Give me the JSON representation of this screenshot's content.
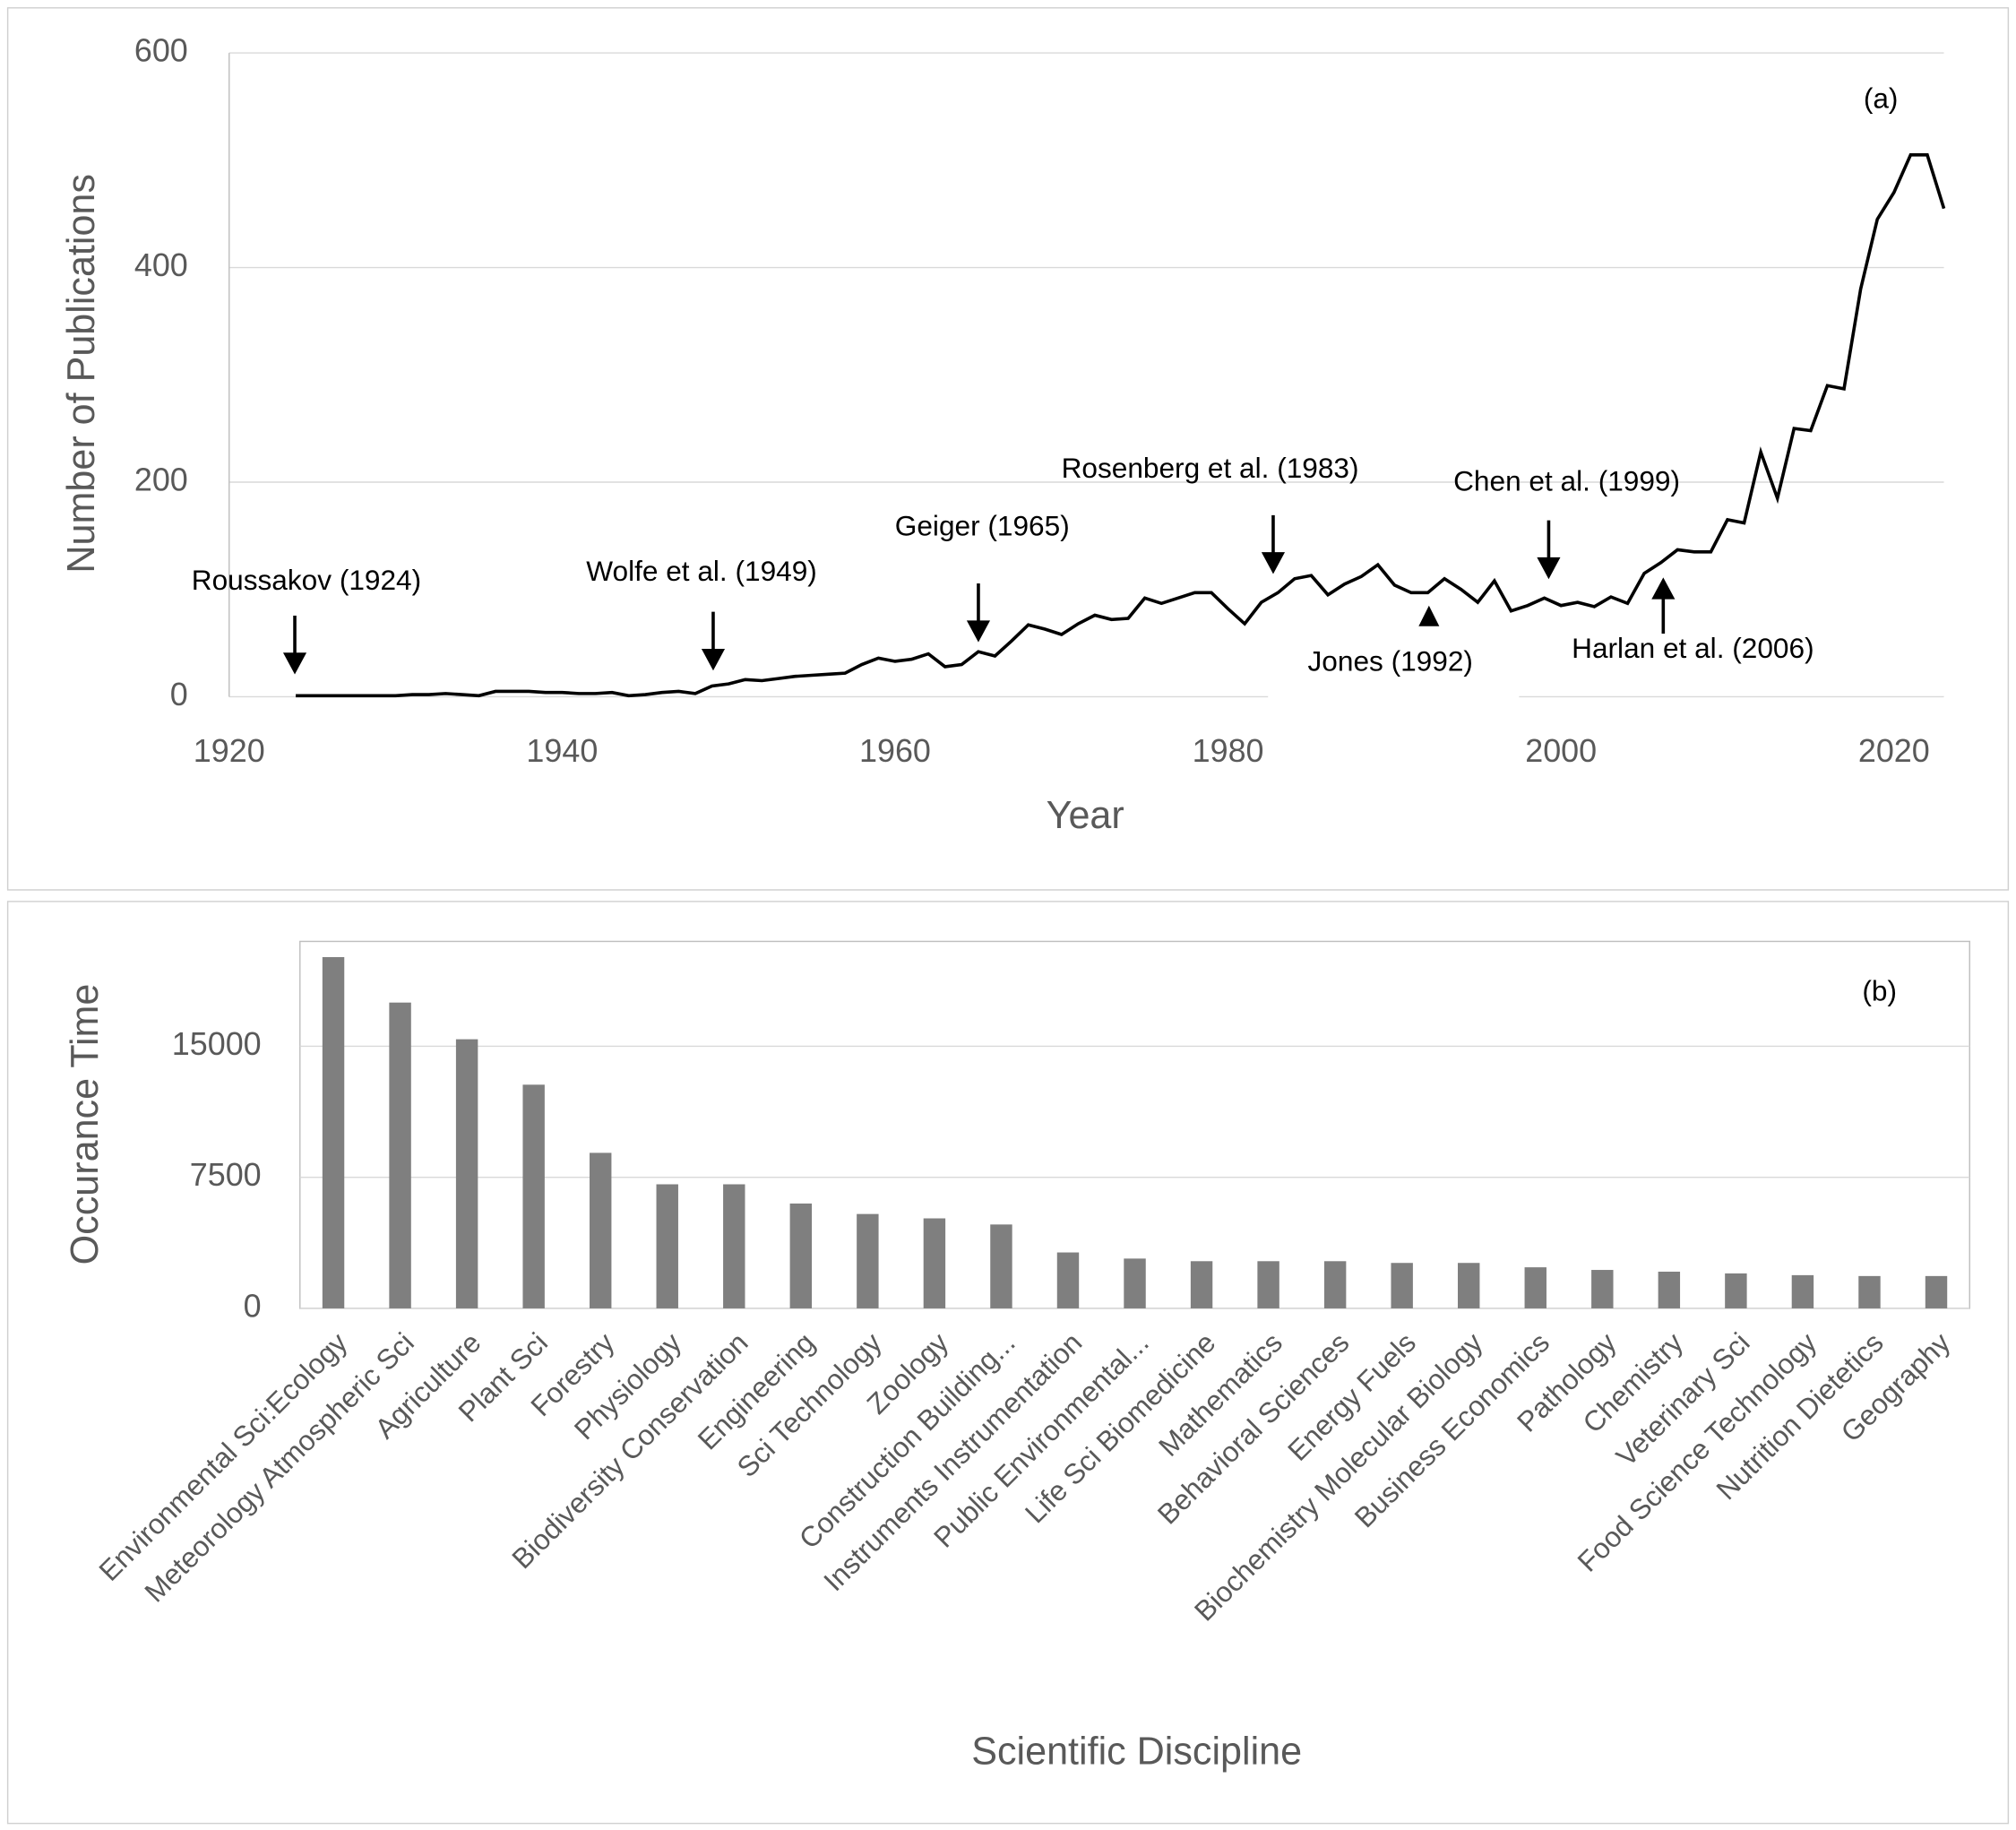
{
  "chart_data": [
    {
      "type": "line",
      "panel_label": "(a)",
      "x_label": "Year",
      "y_label": "Number of Publications",
      "color": "#000000",
      "x": [
        1924,
        1925,
        1926,
        1927,
        1928,
        1929,
        1930,
        1931,
        1932,
        1933,
        1934,
        1935,
        1936,
        1937,
        1938,
        1939,
        1940,
        1941,
        1942,
        1943,
        1944,
        1945,
        1946,
        1947,
        1948,
        1949,
        1950,
        1951,
        1952,
        1953,
        1954,
        1955,
        1956,
        1957,
        1958,
        1959,
        1960,
        1961,
        1962,
        1963,
        1964,
        1965,
        1966,
        1967,
        1968,
        1969,
        1970,
        1971,
        1972,
        1973,
        1974,
        1975,
        1976,
        1977,
        1978,
        1979,
        1980,
        1981,
        1982,
        1983,
        1984,
        1985,
        1986,
        1987,
        1988,
        1989,
        1990,
        1991,
        1992,
        1993,
        1994,
        1995,
        1996,
        1997,
        1998,
        1999,
        2000,
        2001,
        2002,
        2003,
        2004,
        2005,
        2006,
        2007,
        2008,
        2009,
        2010,
        2011,
        2012,
        2013,
        2014,
        2015,
        2016,
        2017,
        2018,
        2019,
        2020,
        2021,
        2022,
        2023
      ],
      "values": [
        1,
        1,
        1,
        1,
        1,
        1,
        1,
        2,
        2,
        3,
        2,
        1,
        5,
        5,
        5,
        4,
        4,
        3,
        3,
        4,
        1,
        2,
        4,
        5,
        3,
        10,
        12,
        16,
        15,
        17,
        19,
        20,
        21,
        22,
        30,
        36,
        33,
        35,
        40,
        28,
        30,
        42,
        38,
        52,
        67,
        63,
        58,
        68,
        76,
        72,
        73,
        92,
        87,
        92,
        97,
        97,
        82,
        68,
        88,
        97,
        110,
        113,
        95,
        105,
        112,
        123,
        104,
        97,
        97,
        110,
        100,
        88,
        108,
        80,
        85,
        92,
        85,
        88,
        84,
        93,
        87,
        115,
        125,
        137,
        135,
        135,
        165,
        162,
        228,
        185,
        250,
        248,
        290,
        287,
        380,
        445,
        470,
        505,
        505,
        455
      ],
      "xlim": [
        1920,
        2023
      ],
      "xticks": [
        1920,
        1940,
        1960,
        1980,
        2000,
        2020
      ],
      "ylim": [
        0,
        600
      ],
      "yticks": [
        0,
        200,
        400,
        600
      ],
      "grid": true,
      "annotations": [
        "Roussakov (1924)",
        "Wolfe et al. (1949)",
        "Geiger (1965)",
        "Rosenberg et al. (1983)",
        "Chen et al. (1999)",
        "Jones (1992)",
        "Harlan et al. (2006)"
      ]
    },
    {
      "type": "bar",
      "panel_label": "(b)",
      "x_label": "Scientific Discipline",
      "y_label": "Occurance Time",
      "color": "#7f7f7f",
      "categories": [
        "Environmental Sci:Ecology",
        "Meteorology Atmospheric Sci",
        "Agriculture",
        "Plant Sci",
        "Forestry",
        "Physiology",
        "Biodiversity Conservation",
        "Engineering",
        "Sci Technology",
        "Zoology",
        "Construction Building...",
        "Instruments Instrumentation",
        "Public Environmental...",
        "Life Sci Biomedicine",
        "Mathematics",
        "Behavioral Sciences",
        "Energy Fuels",
        "Biochemistry Molecular Biology",
        "Business Economics",
        "Pathology",
        "Chemistry",
        "Veterinary Sci",
        "Food Science Technology",
        "Nutrition Dietetics",
        "Geography"
      ],
      "values": [
        20100,
        17500,
        15400,
        12800,
        8900,
        7100,
        7100,
        6000,
        5400,
        5150,
        4800,
        3200,
        2850,
        2700,
        2700,
        2700,
        2600,
        2600,
        2350,
        2200,
        2100,
        2000,
        1900,
        1850,
        1850
      ],
      "ylim": [
        0,
        21000
      ],
      "yticks": [
        0,
        7500,
        15000
      ],
      "grid": true
    }
  ]
}
